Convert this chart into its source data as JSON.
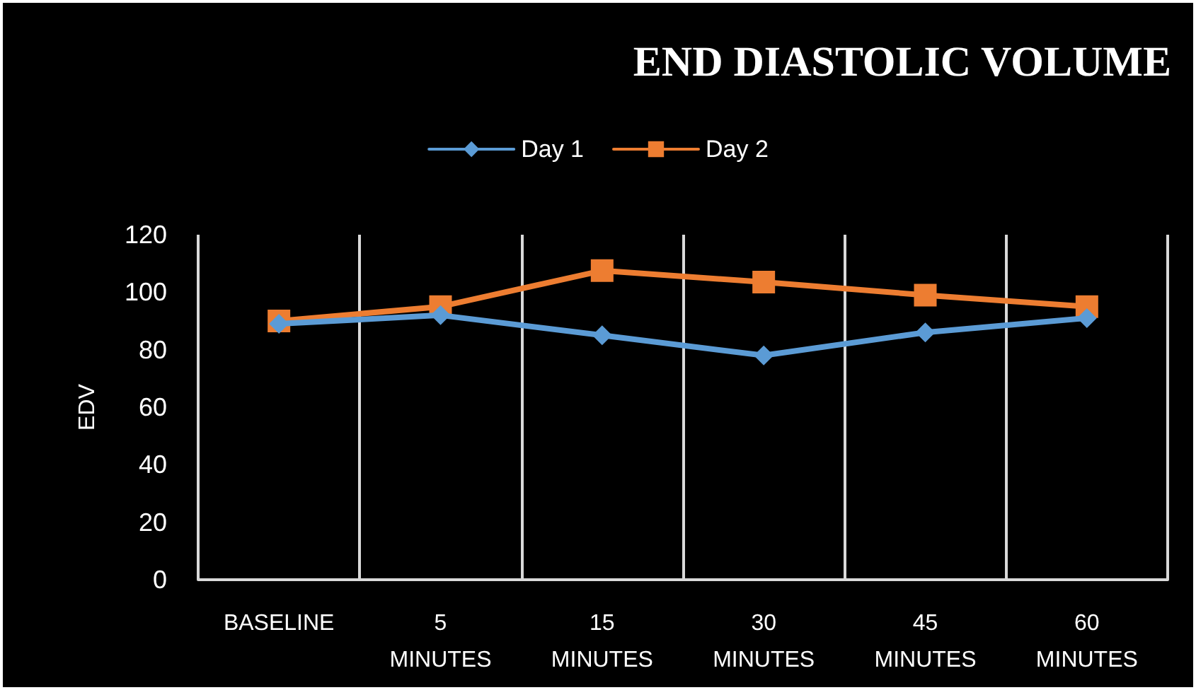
{
  "chart_data": {
    "type": "line",
    "title": "END DIASTOLIC VOLUME",
    "ylabel": "EDV",
    "categories": [
      "BASELINE",
      "5 MINUTES",
      "15 MINUTES",
      "30 MINUTES",
      "45 MINUTES",
      "60 MINUTES"
    ],
    "series": [
      {
        "name": "Day 1",
        "color": "#5b9bd5",
        "marker": "diamond",
        "values": [
          89,
          92,
          85,
          78,
          86,
          91
        ]
      },
      {
        "name": "Day 2",
        "color": "#ed7d31",
        "marker": "square",
        "values": [
          90,
          95,
          107.5,
          103.5,
          99,
          95
        ]
      }
    ],
    "ylim": [
      0,
      120
    ],
    "yticks": [
      0,
      20,
      40,
      60,
      80,
      100,
      120
    ],
    "grid": "x",
    "legend": "top"
  }
}
